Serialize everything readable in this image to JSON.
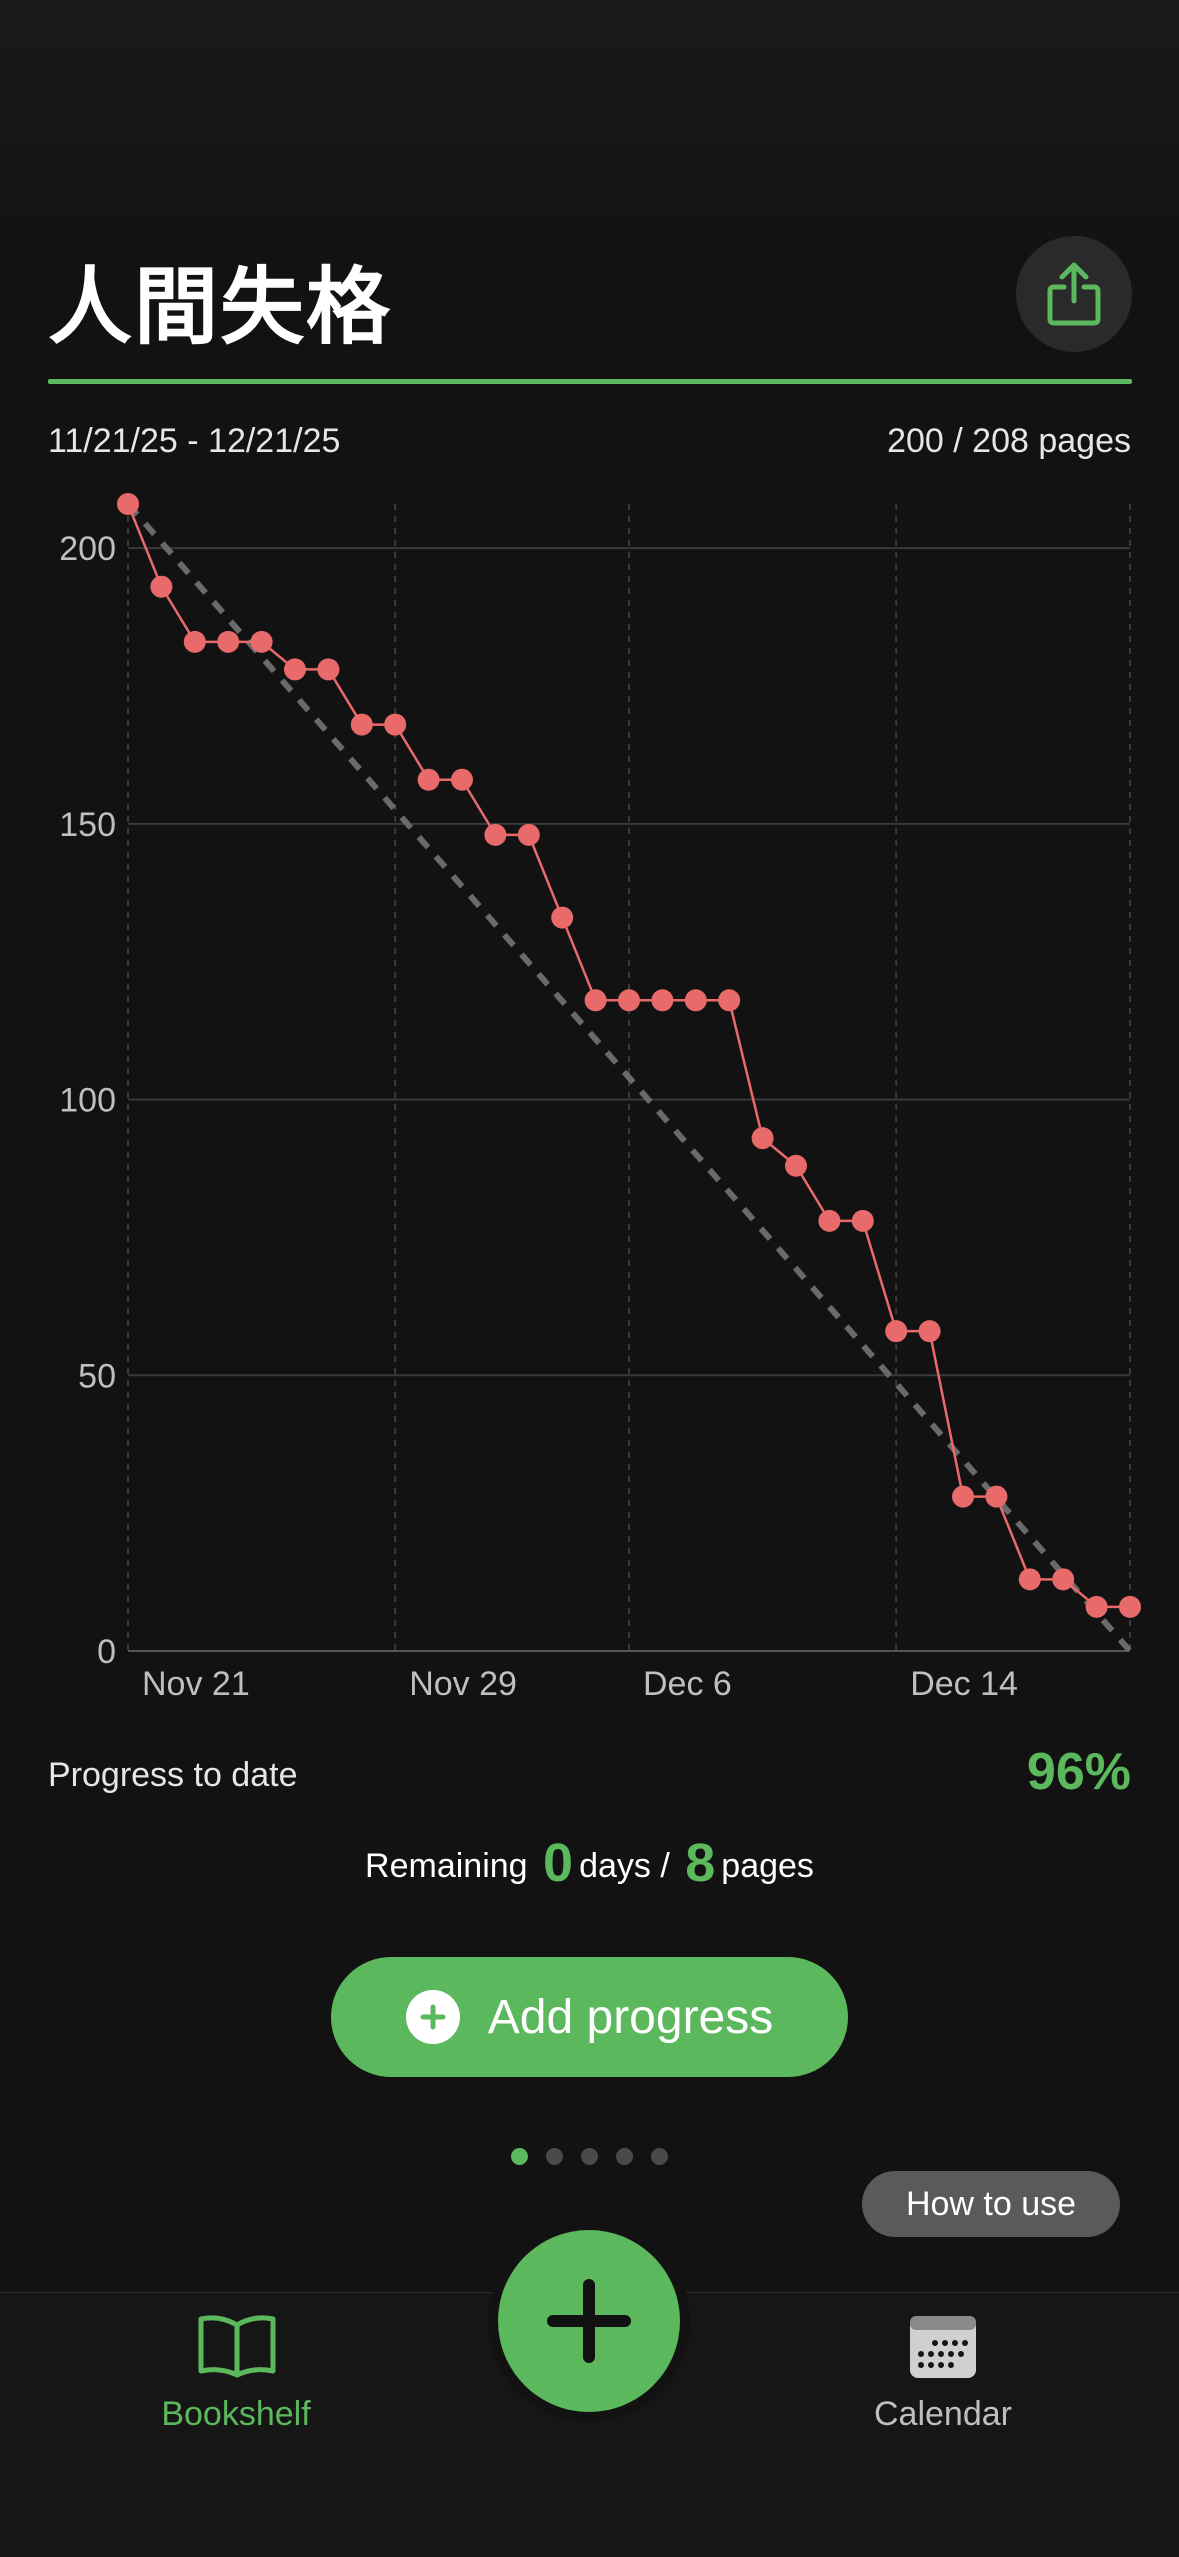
{
  "book": {
    "title": "人間失格",
    "date_range": "11/21/25 - 12/21/25",
    "pages_progress": "200 / 208 pages"
  },
  "colors": {
    "accent": "#5cb85c",
    "series": "#e86a6a",
    "background": "#121212",
    "ideal_line": "#6a6a6a"
  },
  "chart_data": {
    "type": "line",
    "title": "",
    "xlabel": "",
    "ylabel": "",
    "ylim": [
      0,
      208
    ],
    "yticks": [
      0,
      50,
      100,
      150,
      200
    ],
    "x_start": "Nov 21",
    "x_end": "Dec 21",
    "xtick_labels": [
      {
        "label": "Nov 21",
        "day": 0
      },
      {
        "label": "Nov 29",
        "day": 8
      },
      {
        "label": "Dec 6",
        "day": 15
      },
      {
        "label": "Dec 14",
        "day": 23
      }
    ],
    "grid": true,
    "ideal_line": {
      "from": [
        0,
        208
      ],
      "to": [
        30,
        0
      ],
      "style": "dashed"
    },
    "series": [
      {
        "x": [
          0,
          1,
          2,
          3,
          4,
          5,
          6,
          7,
          8,
          9,
          10,
          11,
          12,
          13,
          14,
          15,
          16,
          17,
          18,
          19,
          20,
          21,
          22,
          23,
          24,
          25,
          26,
          27,
          28,
          29,
          30
        ],
        "values": [
          208,
          193,
          183,
          183,
          183,
          178,
          178,
          168,
          168,
          158,
          158,
          148,
          148,
          133,
          118,
          118,
          118,
          118,
          118,
          93,
          88,
          78,
          78,
          58,
          58,
          28,
          28,
          13,
          13,
          8,
          8
        ]
      }
    ]
  },
  "stats": {
    "progress_label": "Progress to date",
    "progress_value": "96%",
    "remaining_label": "Remaining",
    "remaining_days": "0",
    "days_label": "days /",
    "remaining_pages": "8",
    "pages_label": "pages"
  },
  "actions": {
    "add_progress_label": "Add progress",
    "how_to_use_label": "How to use"
  },
  "pager": {
    "count": 5,
    "active": 0
  },
  "tabbar": {
    "bookshelf_label": "Bookshelf",
    "calendar_label": "Calendar"
  },
  "icons": {
    "share": "share-icon",
    "add": "plus-icon",
    "bookshelf": "book-icon",
    "calendar": "calendar-icon"
  }
}
